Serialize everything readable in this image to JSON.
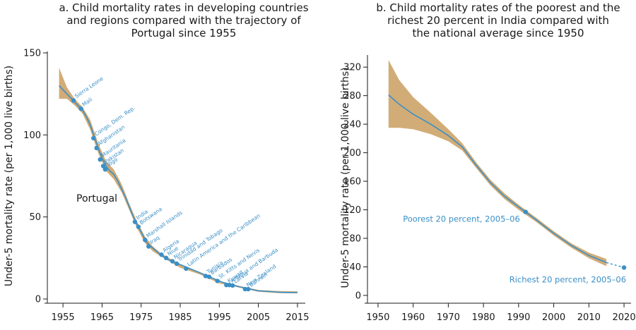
{
  "colors": {
    "line": "#3a8fc7",
    "band": "#d2ac77",
    "point": "#3a8fc7",
    "axis": "#1a1a1a"
  },
  "chart_data": [
    {
      "type": "line",
      "title_lines": [
        "a. Child mortality rates in developing countries",
        "and regions compared with the trajectory of",
        "Portugal since 1955"
      ],
      "ylabel": "Under-5 mortality rate (per 1,000 live births)",
      "series_label": "Portugal",
      "xlim": [
        1951,
        2017
      ],
      "ylim": [
        0,
        150
      ],
      "x_ticks": [
        1955,
        1965,
        1975,
        1985,
        1995,
        2005,
        2015
      ],
      "y_ticks": [
        0,
        50,
        100,
        150
      ],
      "line": {
        "x": [
          1954,
          1956,
          1958,
          1960,
          1961,
          1962,
          1963,
          1964,
          1965,
          1966,
          1967,
          1968,
          1969,
          1970,
          1971,
          1972,
          1973,
          1974,
          1975,
          1976,
          1977,
          1978,
          1980,
          1982,
          1984,
          1986,
          1988,
          1990,
          1992,
          1994,
          1996,
          1998,
          2000,
          2002,
          2005,
          2008,
          2011,
          2015
        ],
        "y": [
          130,
          125,
          120,
          115,
          111,
          106,
          99,
          92,
          86,
          81,
          78,
          76,
          72,
          67,
          62,
          56,
          50,
          45,
          41,
          36,
          33,
          31,
          27,
          24,
          22,
          20,
          18,
          16,
          14,
          12,
          10,
          9,
          7.5,
          6.5,
          5,
          4.5,
          4,
          4
        ]
      },
      "band": {
        "x": [
          1954,
          1956,
          1958,
          1960,
          1962,
          1964,
          1966,
          1968,
          1970,
          1972,
          1974,
          1976,
          1978,
          1980,
          1985,
          1990,
          1995,
          2000,
          2005,
          2010,
          2015
        ],
        "upper": [
          141,
          129,
          122,
          117,
          109,
          95,
          84,
          79,
          70,
          58,
          47,
          38,
          32,
          28,
          21,
          16.5,
          11,
          8,
          5.5,
          4.8,
          4.6
        ],
        "lower": [
          122,
          122,
          118,
          113,
          103,
          89,
          78,
          73,
          65,
          54,
          43,
          34,
          29,
          26,
          19,
          15,
          9.5,
          7,
          4.4,
          3.6,
          3.4
        ]
      },
      "points": [
        {
          "name": "Sierra Leone",
          "x": 1957.7,
          "y": 121
        },
        {
          "name": "Mali",
          "x": 1959.6,
          "y": 116
        },
        {
          "name": "Congo, Dem. Rep.",
          "x": 1962.8,
          "y": 98
        },
        {
          "name": "Afghanistan",
          "x": 1963.6,
          "y": 92
        },
        {
          "name": "Mauritania",
          "x": 1964.5,
          "y": 85
        },
        {
          "name": "Pakistan",
          "x": 1965.3,
          "y": 81
        },
        {
          "name": "Togo",
          "x": 1965.8,
          "y": 79
        },
        {
          "name": "India",
          "x": 1973.4,
          "y": 47
        },
        {
          "name": "Botswana",
          "x": 1974.3,
          "y": 44
        },
        {
          "name": "Marshall Islands",
          "x": 1976.0,
          "y": 36
        },
        {
          "name": "Iraq",
          "x": 1976.9,
          "y": 32
        },
        {
          "name": "Algeria",
          "x": 1980.2,
          "y": 27
        },
        {
          "name": "Niue",
          "x": 1981.4,
          "y": 25
        },
        {
          "name": "Nicaragua",
          "x": 1983.0,
          "y": 23
        },
        {
          "name": "Trinidad and Tobago",
          "x": 1984.1,
          "y": 21.5
        },
        {
          "name": "Latin America and the Caribbean",
          "x": 1986.5,
          "y": 18.5
        },
        {
          "name": "Tunisia",
          "x": 1991.5,
          "y": 14
        },
        {
          "name": "Barbados",
          "x": 1992.4,
          "y": 13.5
        },
        {
          "name": "St. Kitts and Nevis",
          "x": 1994.5,
          "y": 11
        },
        {
          "name": "Kuwait",
          "x": 1996.8,
          "y": 8.5
        },
        {
          "name": "Antigua and Barbuda",
          "x": 1997.6,
          "y": 8.5
        },
        {
          "name": "Latvia",
          "x": 1998.4,
          "y": 8.2
        },
        {
          "name": "New Zealand",
          "x": 2001.6,
          "y": 6
        },
        {
          "name": "Bahrain",
          "x": 2002.4,
          "y": 6
        }
      ]
    },
    {
      "type": "line",
      "title_lines": [
        "b. Child mortality rates of the poorest and the",
        "richest 20 percent in India compared with",
        "the national average since 1950"
      ],
      "ylabel": "Under-5 mortality rate (per 1,000 live births)",
      "xlim": [
        1947,
        2022
      ],
      "ylim": [
        -5,
        335
      ],
      "x_ticks": [
        1950,
        1960,
        1970,
        1980,
        1990,
        2000,
        2010,
        2020
      ],
      "y_ticks": [
        0,
        40,
        80,
        120,
        160,
        200,
        240,
        280,
        320
      ],
      "line": {
        "x": [
          1953,
          1956,
          1960,
          1965,
          1970,
          1974,
          1978,
          1982,
          1986,
          1990,
          1992,
          1995,
          2000,
          2005,
          2010,
          2015
        ],
        "y": [
          281,
          268,
          254,
          240,
          224,
          208,
          182,
          158,
          139,
          124,
          117,
          106,
          87,
          70,
          56,
          46
        ]
      },
      "band": {
        "x": [
          1953,
          1956,
          1960,
          1965,
          1970,
          1974,
          1978,
          1982,
          1986,
          1990,
          1995,
          2000,
          2005,
          2010,
          2015
        ],
        "upper": [
          330,
          302,
          278,
          256,
          233,
          213,
          186,
          162,
          143,
          127,
          109,
          90,
          73,
          60,
          51
        ],
        "lower": [
          235,
          235,
          233,
          226,
          216,
          203,
          178,
          154,
          135,
          120,
          103,
          84,
          67,
          52,
          41
        ]
      },
      "extension": {
        "x": [
          2015,
          2020
        ],
        "y": [
          46,
          39
        ]
      },
      "points": [
        {
          "name": "Poorest 20 percent, 2005–06",
          "x": 1992,
          "y": 117
        },
        {
          "name": "Richest 20 percent, 2005–06",
          "x": 2020,
          "y": 39
        }
      ]
    }
  ]
}
